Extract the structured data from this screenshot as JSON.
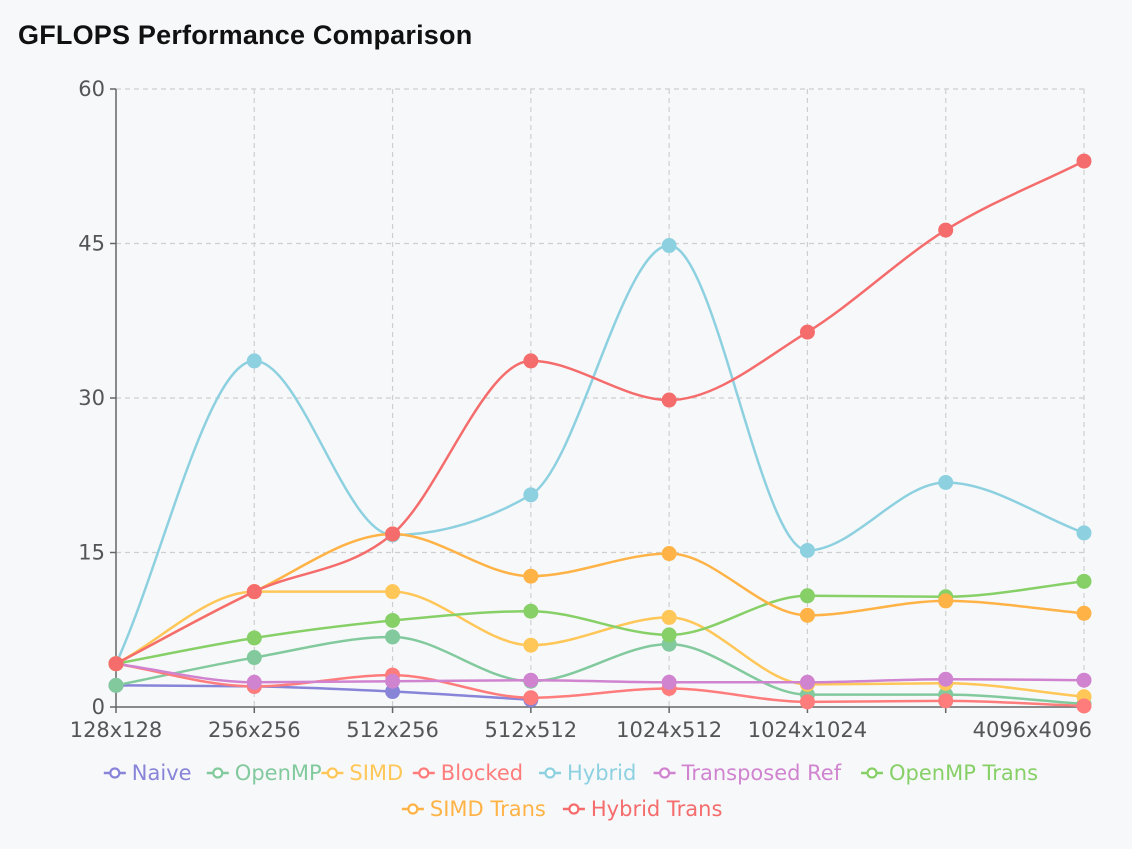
{
  "title": "GFLOPS Performance Comparison",
  "chart_data": {
    "type": "line",
    "title": "GFLOPS Performance Comparison",
    "xlabel": "",
    "ylabel": "",
    "x_positions": [
      "128x128",
      "256x256",
      "512x256",
      "512x512",
      "1024x512",
      "1024x1024",
      "",
      "4096x4096"
    ],
    "x_tick_labels": [
      "128x128",
      "256x256",
      "512x256",
      "512x512",
      "1024x512",
      "1024x1024",
      "4096x4096"
    ],
    "ylim": [
      0,
      60
    ],
    "y_ticks": [
      0,
      15,
      30,
      45,
      60
    ],
    "grid": true,
    "legend_position": "bottom",
    "series": [
      {
        "name": "Naive",
        "color": "#8884d8",
        "values": [
          2.1,
          2.0,
          1.5,
          0.7,
          null,
          null,
          null,
          null
        ]
      },
      {
        "name": "OpenMP",
        "color": "#82ca9d",
        "values": [
          2.1,
          4.8,
          6.8,
          2.5,
          6.1,
          1.2,
          1.2,
          0.3
        ]
      },
      {
        "name": "SIMD",
        "color": "#ffc658",
        "values": [
          4.2,
          11.2,
          11.2,
          6.0,
          8.7,
          2.2,
          2.3,
          1.0
        ]
      },
      {
        "name": "Blocked",
        "color": "#ff7c7c",
        "values": [
          4.2,
          2.0,
          3.1,
          0.9,
          1.8,
          0.5,
          0.6,
          0.1
        ]
      },
      {
        "name": "Hybrid",
        "color": "#8dd1e1",
        "values": [
          4.2,
          33.6,
          16.7,
          20.6,
          44.8,
          15.2,
          21.8,
          16.9
        ]
      },
      {
        "name": "Transposed Ref",
        "color": "#d084d0",
        "values": [
          4.2,
          2.4,
          2.5,
          2.6,
          2.4,
          2.4,
          2.7,
          2.6
        ]
      },
      {
        "name": "OpenMP Trans",
        "color": "#87d068",
        "values": [
          4.2,
          6.7,
          8.4,
          9.3,
          7.0,
          10.8,
          10.7,
          12.2
        ]
      },
      {
        "name": "SIMD Trans",
        "color": "#ffb347",
        "values": [
          4.2,
          11.2,
          16.8,
          12.7,
          14.9,
          8.9,
          10.3,
          9.1
        ]
      },
      {
        "name": "Hybrid Trans",
        "color": "#f56c6c",
        "values": [
          4.2,
          11.2,
          16.8,
          33.6,
          29.8,
          36.4,
          46.3,
          53.0
        ]
      }
    ]
  }
}
